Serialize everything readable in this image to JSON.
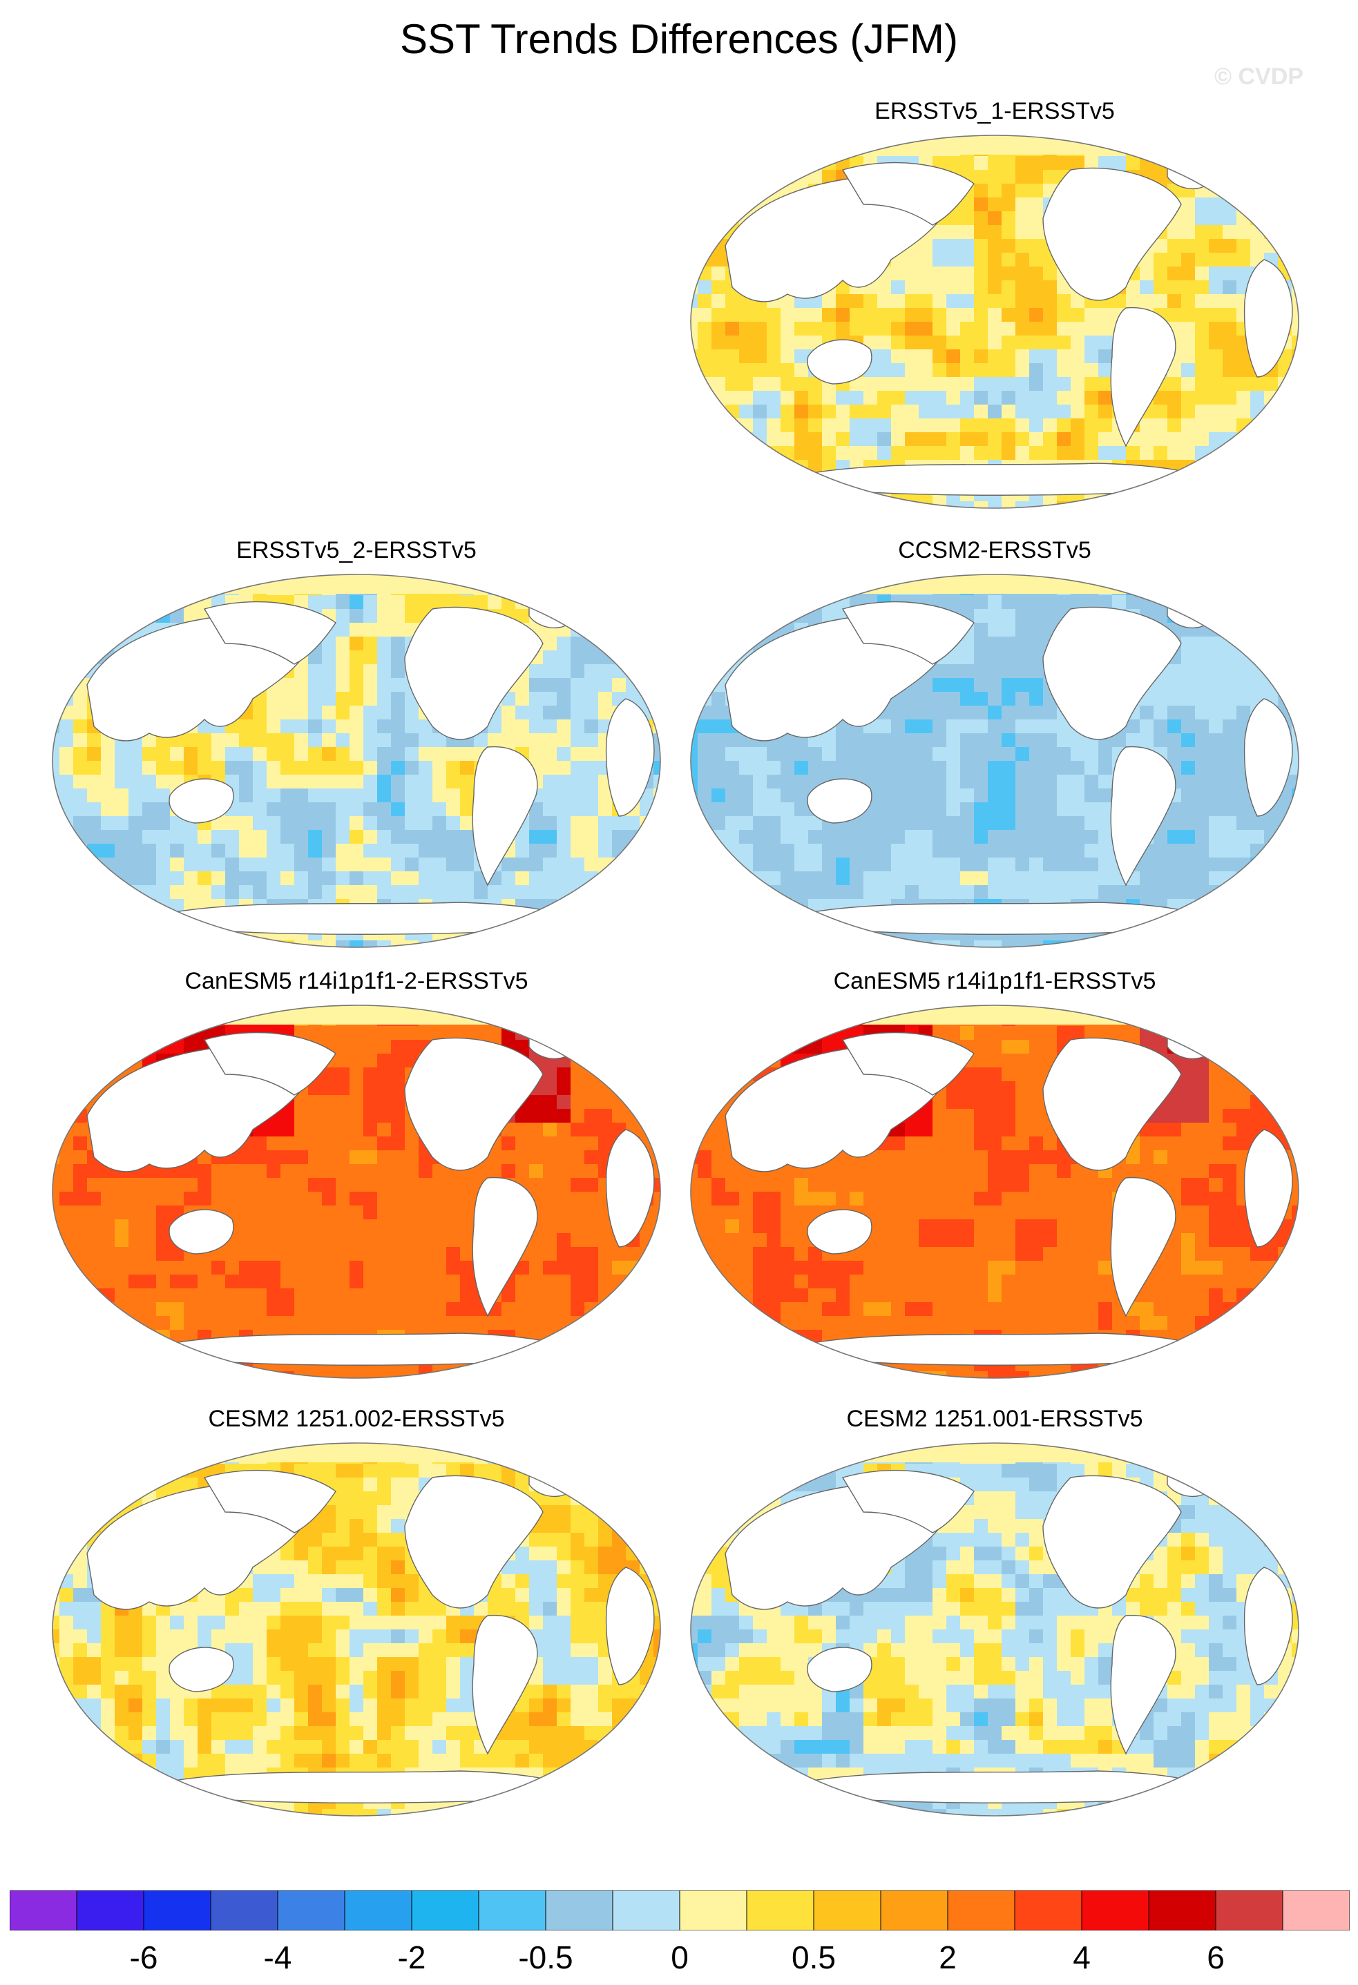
{
  "title": "SST Trends Differences (JFM)",
  "watermark": "© CVDP",
  "panels": [
    {
      "label": "ERSSTv5_1-ERSSTv5",
      "pattern": "mixed"
    },
    {
      "label": "ERSSTv5_2-ERSSTv5",
      "pattern": "mixed-cool"
    },
    {
      "label": "CCSM2-ERSSTv5",
      "pattern": "cool"
    },
    {
      "label": "CanESM5 r14i1p1f1-2-ERSSTv5",
      "pattern": "warm"
    },
    {
      "label": "CanESM5 r14i1p1f1-ERSSTv5",
      "pattern": "warm"
    },
    {
      "label": "CESM2 1251.002-ERSSTv5",
      "pattern": "mixed"
    },
    {
      "label": "CESM2 1251.001-ERSSTv5",
      "pattern": "mixed-cool"
    }
  ],
  "colorbar": {
    "colors": [
      "#8a2be2",
      "#3a1eef",
      "#1432f0",
      "#3c5ad2",
      "#3c82e6",
      "#28a0f0",
      "#1eb4f0",
      "#50c3f5",
      "#96c8e6",
      "#b4e1f5",
      "#fff5a0",
      "#ffe13c",
      "#ffc31e",
      "#ffa014",
      "#ff7814",
      "#ff4614",
      "#f50a0a",
      "#d20000",
      "#d23c3c",
      "#ffb4b4"
    ],
    "labels": [
      {
        "text": "-6",
        "after_box": 2
      },
      {
        "text": "-4",
        "after_box": 4
      },
      {
        "text": "-2",
        "after_box": 6
      },
      {
        "text": "-0.5",
        "after_box": 8
      },
      {
        "text": "0",
        "after_box": 10
      },
      {
        "text": "0.5",
        "after_box": 12
      },
      {
        "text": "2",
        "after_box": 14
      },
      {
        "text": "4",
        "after_box": 16
      },
      {
        "text": "6",
        "after_box": 18
      }
    ]
  }
}
